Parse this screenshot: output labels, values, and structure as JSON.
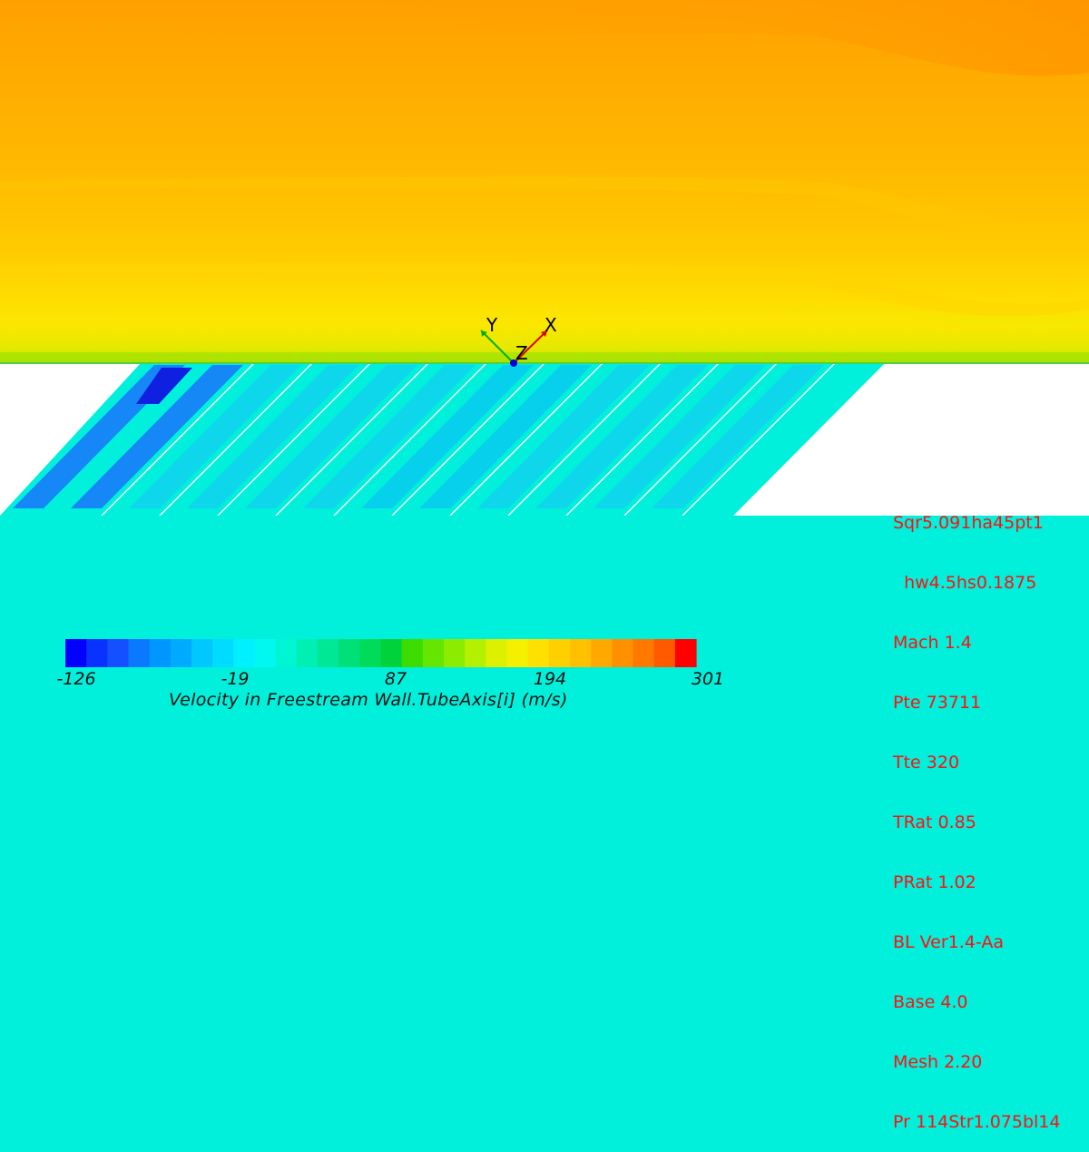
{
  "scene": {
    "colors": {
      "freestream_top": "#ffa000",
      "freestream_mid": "#ffc400",
      "boundary_layer": "#f0ea00",
      "wall_green": "#7fe000",
      "cavity_fill": "#00f0dc",
      "slot_low": "#0060ff",
      "slot_deep": "#1020e0",
      "void": "#ffffff"
    }
  },
  "axis_triad": {
    "labels": {
      "x": "X",
      "y": "Y",
      "z": "Z"
    },
    "colors": {
      "x": "#e00000",
      "y": "#00b000",
      "z": "#0000e0"
    }
  },
  "info_panel": {
    "lines": [
      "Sqr5.091ha45pt1",
      "  hw4.5hs0.1875",
      "Mach 1.4",
      "Pte 73711",
      "Tte 320",
      "TRat 0.85",
      "PRat 1.02",
      "BL Ver1.4-Aa",
      "Base 4.0",
      "Mesh 2.20",
      "Pr 114Str1.075bl14"
    ],
    "color": "#ff1010"
  },
  "legend": {
    "title": "Velocity in Freestream Wall.TubeAxis[i] (m/s)",
    "tick_labels": [
      "-126",
      "-19",
      "87",
      "194",
      "301"
    ],
    "min": -126,
    "max": 301,
    "colors": [
      "#0000ff",
      "#0a32ff",
      "#1450ff",
      "#0a78ff",
      "#0096ff",
      "#00aaff",
      "#00c8ff",
      "#00dcff",
      "#00f0ff",
      "#00f8f0",
      "#00f5d2",
      "#00f0b4",
      "#00e896",
      "#00e078",
      "#00dc5a",
      "#00d23c",
      "#3cdc00",
      "#64e600",
      "#8cec00",
      "#b4f000",
      "#dcf000",
      "#f5f000",
      "#ffe000",
      "#ffd000",
      "#ffc000",
      "#ffa800",
      "#ff9000",
      "#ff7800",
      "#ff5a00",
      "#ff0000"
    ]
  }
}
